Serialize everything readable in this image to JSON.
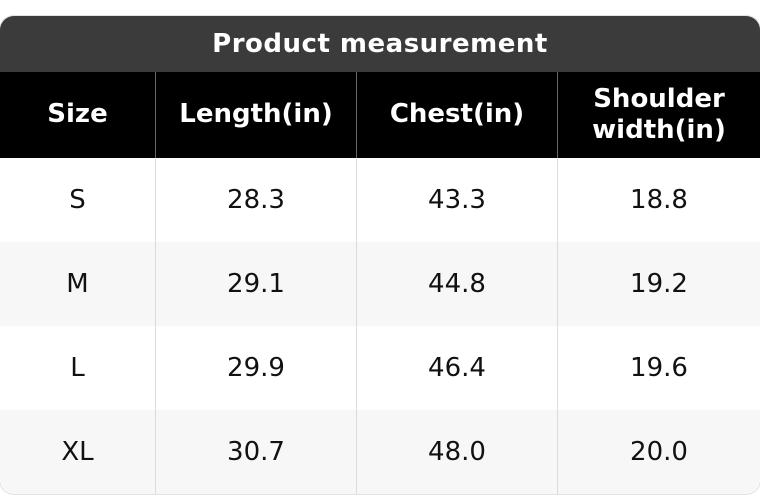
{
  "title": "Product measurement",
  "table": {
    "header": [
      "Size",
      "Length(in)",
      "Chest(in)",
      "Shoulder width(in)"
    ],
    "rows": [
      [
        "S",
        "28.3",
        "43.3",
        "18.8"
      ],
      [
        "M",
        "29.1",
        "44.8",
        "19.2"
      ],
      [
        "L",
        "29.9",
        "46.4",
        "19.6"
      ],
      [
        "XL",
        "30.7",
        "48.0",
        "20.0"
      ]
    ]
  }
}
